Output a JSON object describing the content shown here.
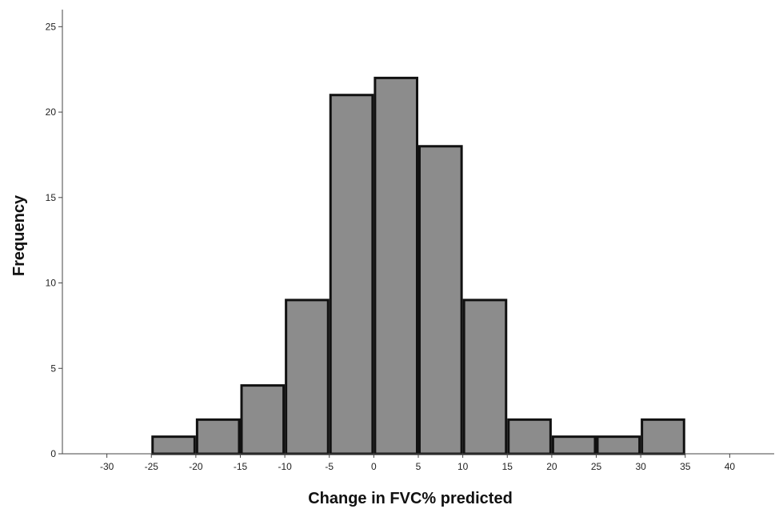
{
  "chart_data": {
    "type": "bar",
    "title": "",
    "xlabel": "Change in FVC% predicted",
    "ylabel": "Frequency",
    "xlim": [
      -35,
      45
    ],
    "ylim": [
      0,
      26
    ],
    "x_ticks": [
      -30,
      -25,
      -20,
      -15,
      -10,
      -5,
      0,
      5,
      10,
      15,
      20,
      25,
      30,
      35,
      40
    ],
    "y_ticks": [
      0,
      5,
      10,
      15,
      20,
      25
    ],
    "bin_width": 5,
    "bins": [
      {
        "start": -25,
        "end": -20,
        "count": 1
      },
      {
        "start": -20,
        "end": -15,
        "count": 2
      },
      {
        "start": -15,
        "end": -10,
        "count": 4
      },
      {
        "start": -10,
        "end": -5,
        "count": 9
      },
      {
        "start": -5,
        "end": 0,
        "count": 21
      },
      {
        "start": 0,
        "end": 5,
        "count": 22
      },
      {
        "start": 5,
        "end": 10,
        "count": 18
      },
      {
        "start": 10,
        "end": 15,
        "count": 9
      },
      {
        "start": 15,
        "end": 20,
        "count": 2
      },
      {
        "start": 20,
        "end": 25,
        "count": 1
      },
      {
        "start": 25,
        "end": 30,
        "count": 1
      },
      {
        "start": 30,
        "end": 35,
        "count": 2
      }
    ],
    "grid": false,
    "bar_color": "#8c8c8c",
    "bar_edge_color": "#111111"
  }
}
